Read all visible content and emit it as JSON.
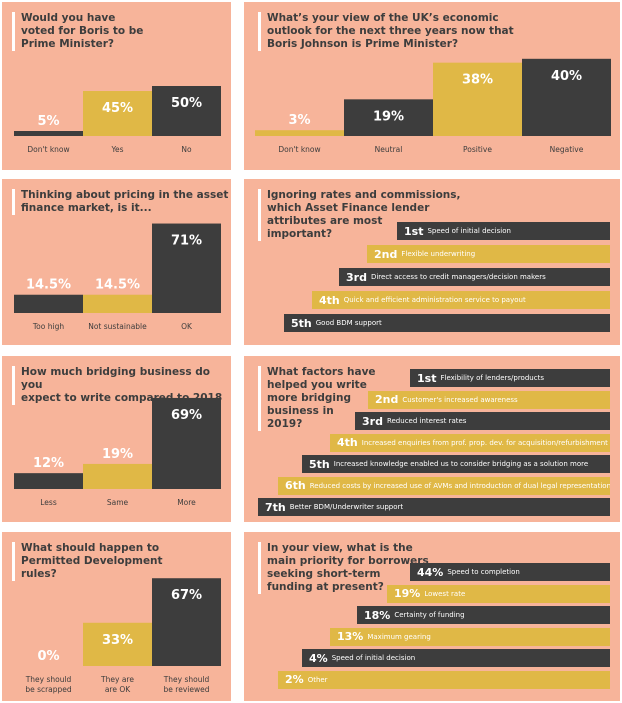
{
  "colors": {
    "background": "#f7b49a",
    "dark": "#3d3d3d",
    "gold": "#e0b846",
    "white": "#ffffff"
  },
  "panels": {
    "boris_pm": {
      "title": "Would you have\nvoted for Boris to be\nPrime Minister?"
    },
    "outlook": {
      "title": "What’s your view of the UK’s economic\noutlook for the next three years now that\nBoris Johnson is Prime Minister?"
    },
    "pricing": {
      "title": "Thinking about pricing in the asset\nfinance market, is it..."
    },
    "attributes": {
      "title": "Ignoring rates and commissions,\nwhich Asset Finance lender\nattributes are most\nimportant?"
    },
    "bridging_volume": {
      "title": "How much bridging business do you\nexpect to write compared to 2018"
    },
    "bridging_factors": {
      "title": "What factors have\nhelped you write\nmore bridging\nbusiness in\n2019?"
    },
    "permitted": {
      "title": "What should happen to\nPermitted Development\nrules?"
    },
    "priority": {
      "title": "In your view, what is the\nmain priority for borrowers\nseeking short-term\nfunding at present?"
    }
  },
  "chart_data": [
    {
      "id": "boris_pm",
      "type": "bar",
      "categories": [
        "Don't know",
        "Yes",
        "No"
      ],
      "values": [
        5,
        45,
        50
      ],
      "labels": [
        "5%",
        "45%",
        "50%"
      ],
      "colors": [
        "#3d3d3d",
        "#e0b846",
        "#3d3d3d"
      ]
    },
    {
      "id": "outlook",
      "type": "bar",
      "categories": [
        "Don't know",
        "Neutral",
        "Positive",
        "Negative"
      ],
      "values": [
        3,
        19,
        38,
        40
      ],
      "labels": [
        "3%",
        "19%",
        "38%",
        "40%"
      ],
      "colors": [
        "#e0b846",
        "#3d3d3d",
        "#e0b846",
        "#3d3d3d"
      ]
    },
    {
      "id": "pricing",
      "type": "bar",
      "categories": [
        "Too high",
        "Not sustainable",
        "OK"
      ],
      "values": [
        14.5,
        14.5,
        71
      ],
      "labels": [
        "14.5%",
        "14.5%",
        "71%"
      ],
      "colors": [
        "#3d3d3d",
        "#e0b846",
        "#3d3d3d"
      ]
    },
    {
      "id": "attributes",
      "type": "bar",
      "horizontal": true,
      "ranks": [
        "1st",
        "2nd",
        "3rd",
        "4th",
        "5th"
      ],
      "labels": [
        "Speed of initial decision",
        "Flexible underwriting",
        "Direct access to credit managers/decision makers",
        "Quick and efficient administration service to payout",
        "Good BDM support"
      ],
      "colors": [
        "#3d3d3d",
        "#e0b846",
        "#3d3d3d",
        "#e0b846",
        "#3d3d3d"
      ]
    },
    {
      "id": "bridging_volume",
      "type": "bar",
      "categories": [
        "Less",
        "Same",
        "More"
      ],
      "values": [
        12,
        19,
        69
      ],
      "labels": [
        "12%",
        "19%",
        "69%"
      ],
      "colors": [
        "#3d3d3d",
        "#e0b846",
        "#3d3d3d"
      ]
    },
    {
      "id": "bridging_factors",
      "type": "bar",
      "horizontal": true,
      "ranks": [
        "1st",
        "2nd",
        "3rd",
        "4th",
        "5th",
        "6th",
        "7th"
      ],
      "labels": [
        "Flexibility of lenders/products",
        "Customer's increased awareness",
        "Reduced interest rates",
        "Increased enquiries from prof. prop. dev. for acquisition/refurbishment",
        "Increased knowledge enabled us to consider bridging as a solution more",
        "Reduced costs by increased use of AVMs and introduction of dual legal representation",
        "Better BDM/Underwriter support"
      ],
      "colors": [
        "#3d3d3d",
        "#e0b846",
        "#3d3d3d",
        "#e0b846",
        "#3d3d3d",
        "#e0b846",
        "#3d3d3d"
      ]
    },
    {
      "id": "permitted",
      "type": "bar",
      "categories": [
        "They should\nbe scrapped",
        "They are\nare OK",
        "They should\nbe reviewed"
      ],
      "values": [
        0,
        33,
        67
      ],
      "labels": [
        "0%",
        "33%",
        "67%"
      ],
      "colors": [
        "#3d3d3d",
        "#e0b846",
        "#3d3d3d"
      ]
    },
    {
      "id": "priority",
      "type": "bar",
      "horizontal": true,
      "ranks": [
        "44%",
        "19%",
        "18%",
        "13%",
        "4%",
        "2%"
      ],
      "values": [
        44,
        19,
        18,
        13,
        4,
        2
      ],
      "labels": [
        "Speed to completion",
        "Lowest rate",
        "Certainty of funding",
        "Maximum gearing",
        "Speed of initial decision",
        "Other"
      ],
      "colors": [
        "#3d3d3d",
        "#e0b846",
        "#3d3d3d",
        "#e0b846",
        "#3d3d3d",
        "#e0b846"
      ]
    }
  ]
}
